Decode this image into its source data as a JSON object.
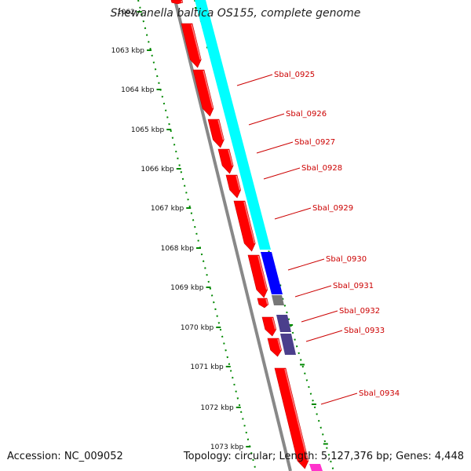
{
  "title": "Shewanella baltica OS155, complete genome",
  "footer": {
    "accession": "Accession: NC_009052",
    "summary": "Topology: circular; Length: 5,127,376 bp; Genes: 4,448"
  },
  "colors": {
    "backbone": "#888888",
    "forward_gene": "#ff0000",
    "cds_cyan": "#00ffff",
    "cds_blue": "#0000ff",
    "cds_gray": "#777777",
    "cds_slate": "#4b3f8c",
    "scale_ticks": "#008800",
    "label": "#cc0000"
  },
  "ruler": {
    "labels": [
      "1062",
      "1063 kbp",
      "1064 kbp",
      "1065 kbp",
      "1066 kbp",
      "1067 kbp",
      "1068 kbp",
      "1069 kbp",
      "1070 kbp",
      "1071 kbp",
      "1072 kbp",
      "1073 kbp"
    ]
  },
  "genes": [
    {
      "label": "Sbal_0925"
    },
    {
      "label": "Sbal_0926"
    },
    {
      "label": "Sbal_0927"
    },
    {
      "label": "Sbal_0928"
    },
    {
      "label": "Sbal_0929"
    },
    {
      "label": "Sbal_0930"
    },
    {
      "label": "Sbal_0931"
    },
    {
      "label": "Sbal_0932"
    },
    {
      "label": "Sbal_0933"
    },
    {
      "label": "Sbal_0934"
    }
  ]
}
